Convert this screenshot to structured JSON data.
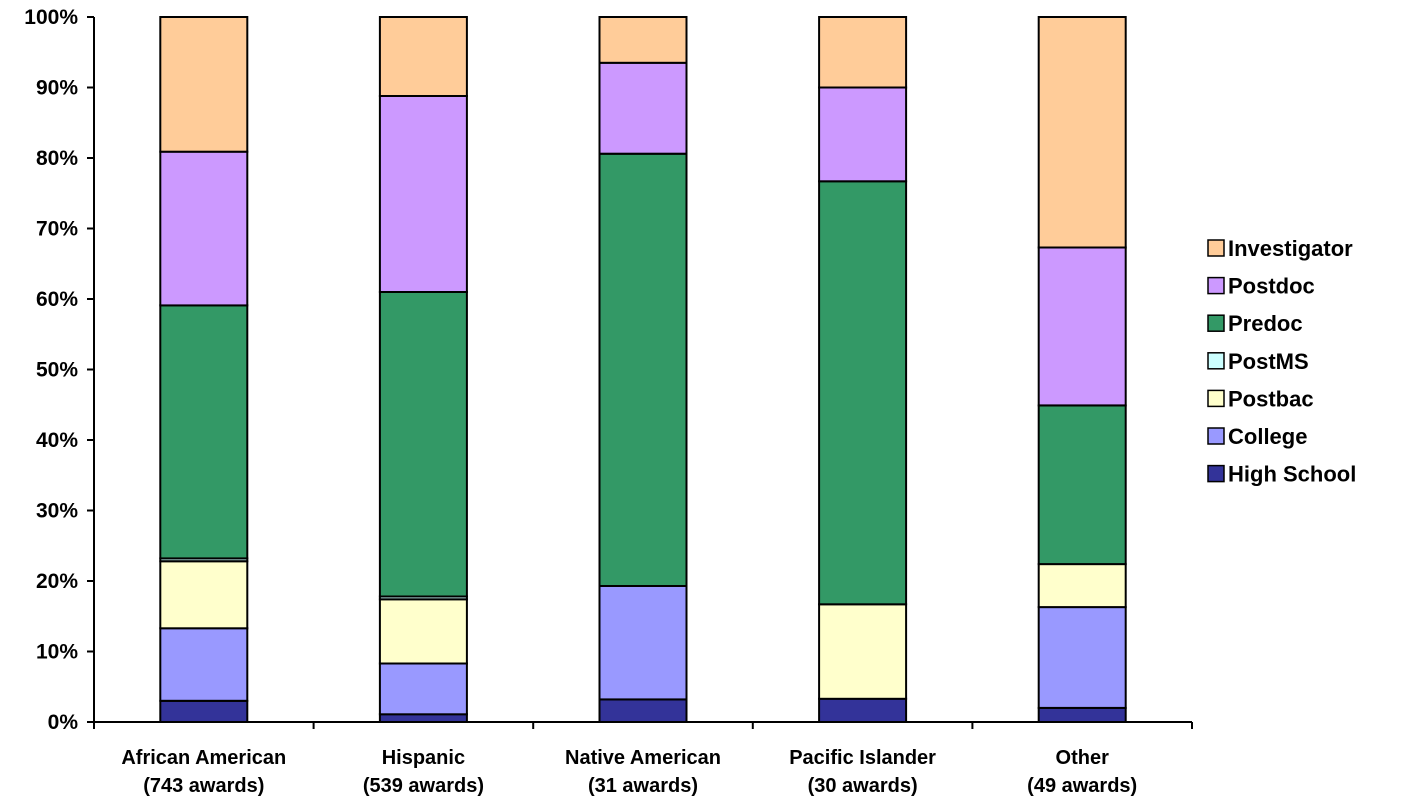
{
  "chart_data": {
    "type": "bar",
    "stacked": true,
    "categories": [
      [
        "African American",
        "(743 awards)"
      ],
      [
        "Hispanic",
        "(539 awards)"
      ],
      [
        "Native American",
        "(31 awards)"
      ],
      [
        "Pacific Islander",
        "(30 awards)"
      ],
      [
        "Other",
        "(49 awards)"
      ]
    ],
    "series": [
      {
        "name": "High School",
        "color": "#333399",
        "values": [
          3.0,
          1.1,
          3.2,
          3.3,
          2.0
        ]
      },
      {
        "name": "College",
        "color": "#9999FF",
        "values": [
          10.3,
          7.2,
          16.1,
          0.0,
          14.3
        ]
      },
      {
        "name": "Postbac",
        "color": "#FFFFCC",
        "values": [
          9.5,
          9.1,
          0.0,
          13.4,
          6.1
        ]
      },
      {
        "name": "PostMS",
        "color": "#CCFFFF",
        "values": [
          0.4,
          0.4,
          0.0,
          0.0,
          0.0
        ]
      },
      {
        "name": "Predoc",
        "color": "#339966",
        "values": [
          35.9,
          43.2,
          61.3,
          60.0,
          22.5
        ]
      },
      {
        "name": "Postdoc",
        "color": "#CC99FF",
        "values": [
          21.8,
          27.8,
          12.9,
          13.3,
          22.4
        ]
      },
      {
        "name": "Investigator",
        "color": "#FFCC99",
        "values": [
          19.1,
          11.2,
          6.5,
          10.0,
          32.7
        ]
      }
    ],
    "yticks": [
      "0%",
      "10%",
      "20%",
      "30%",
      "40%",
      "50%",
      "60%",
      "70%",
      "80%",
      "90%",
      "100%"
    ],
    "ylim": [
      0,
      100
    ],
    "title": "",
    "xlabel": "",
    "ylabel": "",
    "legend_position": "right",
    "grid": false
  }
}
